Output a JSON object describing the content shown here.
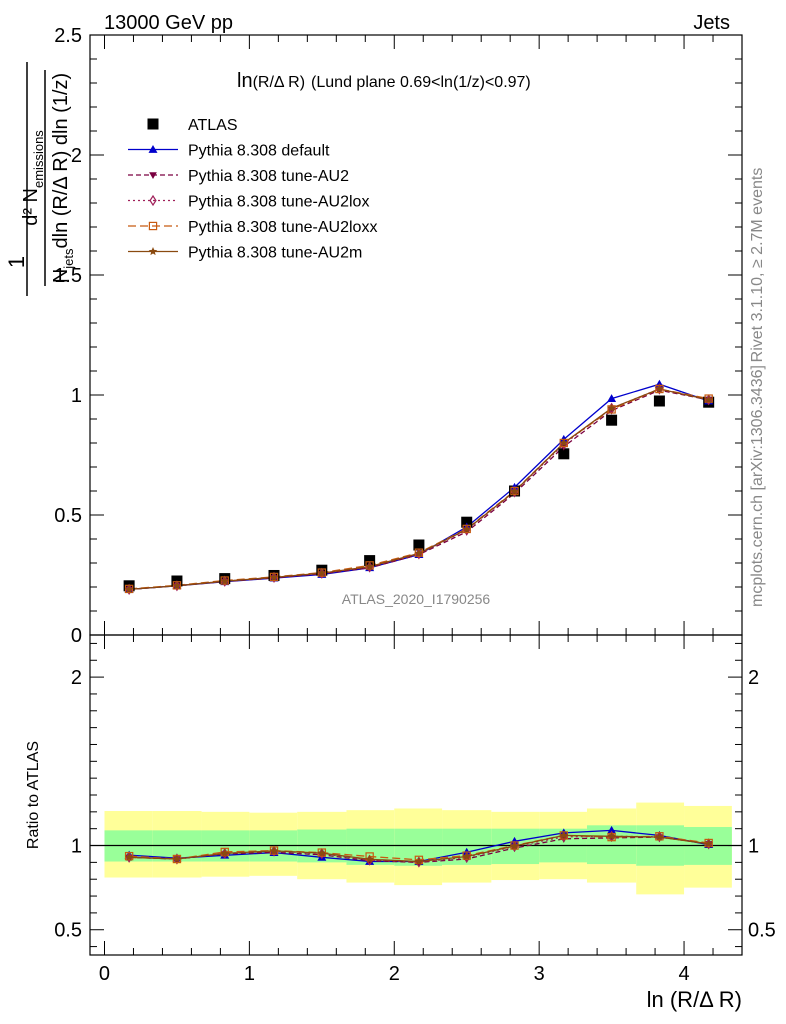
{
  "header": {
    "left": "13000 GeV pp",
    "right": "Jets"
  },
  "main_panel": {
    "title_prefix": "ln",
    "title_var": "(R/Δ R)",
    "title_suffix": "(Lund plane 0.69<ln(1/z)<0.97)",
    "ylabel_numer": "1",
    "ylabel_main_top": "d² N",
    "ylabel_main_top_sub": "emissions",
    "ylabel_main_bottom": "N",
    "ylabel_main_bottom_sub": "jets",
    "ylabel_main_bottom_rest": "dln (R/Δ R) dln (1/z)",
    "watermark": "ATLAS_2020_I1790256"
  },
  "side_labels": {
    "rivet": "Rivet 3.1.10, ≥ 2.7M events",
    "mcplots": "mcplots.cern.ch [arXiv:1306.3436]"
  },
  "ratio_panel": {
    "ylabel": "Ratio to ATLAS"
  },
  "xlabel": "ln (R/Δ R)",
  "colors": {
    "atlas": "#000000",
    "default": "#0000cc",
    "au2": "#7a0040",
    "au2lox": "#a0205a",
    "au2loxx": "#c85a10",
    "au2m": "#8a4a10",
    "band_inner": "#99ff99",
    "band_outer": "#ffff99"
  },
  "chart_data": [
    {
      "type": "scatter",
      "panel": "main",
      "x": [
        0.17,
        0.5,
        0.83,
        1.17,
        1.5,
        1.83,
        2.17,
        2.5,
        2.83,
        3.17,
        3.5,
        3.83,
        4.17
      ],
      "xlim": [
        -0.1,
        4.4
      ],
      "ylim": [
        0,
        2.5
      ],
      "yticks": [
        0,
        0.5,
        1,
        1.5,
        2,
        2.5
      ],
      "yticklabels": [
        "0",
        "0.5",
        "1",
        "1.5",
        "2",
        "2.5"
      ],
      "series": [
        {
          "name": "ATLAS",
          "marker": "square",
          "values": [
            0.205,
            0.225,
            0.235,
            0.248,
            0.27,
            0.31,
            0.375,
            0.47,
            0.6,
            0.755,
            0.895,
            0.975,
            0.97
          ]
        },
        {
          "name": "Pythia 8.308 default",
          "marker": "triangle-up",
          "dash": "",
          "values": [
            0.19,
            0.205,
            0.222,
            0.237,
            0.252,
            0.28,
            0.335,
            0.45,
            0.615,
            0.815,
            0.985,
            1.045,
            0.975
          ]
        },
        {
          "name": "Pythia 8.308 tune-AU2",
          "marker": "triangle-down",
          "dash": "5,3",
          "values": [
            0.19,
            0.205,
            0.223,
            0.238,
            0.255,
            0.28,
            0.335,
            0.43,
            0.59,
            0.785,
            0.935,
            1.02,
            0.98
          ]
        },
        {
          "name": "Pythia 8.308 tune-AU2lox",
          "marker": "diamond",
          "dash": "2,3",
          "values": [
            0.19,
            0.205,
            0.224,
            0.24,
            0.257,
            0.283,
            0.338,
            0.438,
            0.597,
            0.795,
            0.945,
            1.025,
            0.98
          ]
        },
        {
          "name": "Pythia 8.308 tune-AU2loxx",
          "marker": "square-open",
          "dash": "8,4",
          "values": [
            0.192,
            0.207,
            0.227,
            0.242,
            0.26,
            0.29,
            0.343,
            0.442,
            0.6,
            0.8,
            0.94,
            1.025,
            0.985
          ]
        },
        {
          "name": "Pythia 8.308 tune-AU2m",
          "marker": "star",
          "dash": "",
          "values": [
            0.19,
            0.205,
            0.224,
            0.24,
            0.258,
            0.285,
            0.34,
            0.44,
            0.598,
            0.8,
            0.945,
            1.025,
            0.98
          ]
        }
      ]
    },
    {
      "type": "line",
      "panel": "ratio",
      "x": [
        0.17,
        0.5,
        0.83,
        1.17,
        1.5,
        1.83,
        2.17,
        2.5,
        2.83,
        3.17,
        3.5,
        3.83,
        4.17
      ],
      "xlim": [
        -0.1,
        4.4
      ],
      "ylim": [
        0.35,
        2.25
      ],
      "yticks": [
        0.5,
        1,
        2
      ],
      "yticklabels": [
        "0.5",
        "1",
        "2"
      ],
      "xticks": [
        0,
        1,
        2,
        3,
        4
      ],
      "xticklabels": [
        "0",
        "1",
        "2",
        "3",
        "4"
      ],
      "bins": [
        [
          0,
          0.33
        ],
        [
          0.33,
          0.67
        ],
        [
          0.67,
          1
        ],
        [
          1,
          1.33
        ],
        [
          1.33,
          1.67
        ],
        [
          1.67,
          2
        ],
        [
          2,
          2.33
        ],
        [
          2.33,
          2.67
        ],
        [
          2.67,
          3
        ],
        [
          3,
          3.33
        ],
        [
          3.33,
          3.67
        ],
        [
          3.67,
          4
        ],
        [
          4,
          4.33
        ]
      ],
      "band_inner": [
        [
          0.905,
          1.09
        ],
        [
          0.905,
          1.09
        ],
        [
          0.905,
          1.09
        ],
        [
          0.905,
          1.09
        ],
        [
          0.9,
          1.095
        ],
        [
          0.885,
          1.1
        ],
        [
          0.88,
          1.1
        ],
        [
          0.885,
          1.1
        ],
        [
          0.89,
          1.1
        ],
        [
          0.9,
          1.1
        ],
        [
          0.89,
          1.12
        ],
        [
          0.88,
          1.12
        ],
        [
          0.885,
          1.11
        ]
      ],
      "band_outer": [
        [
          0.81,
          1.205
        ],
        [
          0.81,
          1.205
        ],
        [
          0.815,
          1.2
        ],
        [
          0.82,
          1.195
        ],
        [
          0.8,
          1.2
        ],
        [
          0.78,
          1.21
        ],
        [
          0.765,
          1.22
        ],
        [
          0.78,
          1.21
        ],
        [
          0.795,
          1.2
        ],
        [
          0.8,
          1.2
        ],
        [
          0.78,
          1.22
        ],
        [
          0.71,
          1.255
        ],
        [
          0.75,
          1.235
        ]
      ],
      "series": [
        {
          "name": "Pythia 8.308 default",
          "values": [
            0.943,
            0.925,
            0.942,
            0.958,
            0.93,
            0.905,
            0.905,
            0.96,
            1.025,
            1.075,
            1.09,
            1.06,
            1.005
          ]
        },
        {
          "name": "Pythia 8.308 tune-AU2",
          "values": [
            0.93,
            0.92,
            0.95,
            0.96,
            0.945,
            0.91,
            0.9,
            0.92,
            0.985,
            1.04,
            1.045,
            1.05,
            1.01
          ]
        },
        {
          "name": "Pythia 8.308 tune-AU2lox",
          "values": [
            0.93,
            0.92,
            0.953,
            0.967,
            0.952,
            0.913,
            0.902,
            0.93,
            0.995,
            1.052,
            1.055,
            1.052,
            1.01
          ]
        },
        {
          "name": "Pythia 8.308 tune-AU2loxx",
          "values": [
            0.937,
            0.92,
            0.962,
            0.97,
            0.958,
            0.935,
            0.915,
            0.94,
            1.0,
            1.06,
            1.05,
            1.055,
            1.015
          ]
        },
        {
          "name": "Pythia 8.308 tune-AU2m",
          "values": [
            0.93,
            0.92,
            0.953,
            0.968,
            0.955,
            0.918,
            0.905,
            0.935,
            0.997,
            1.06,
            1.055,
            1.05,
            1.01
          ]
        }
      ]
    }
  ]
}
